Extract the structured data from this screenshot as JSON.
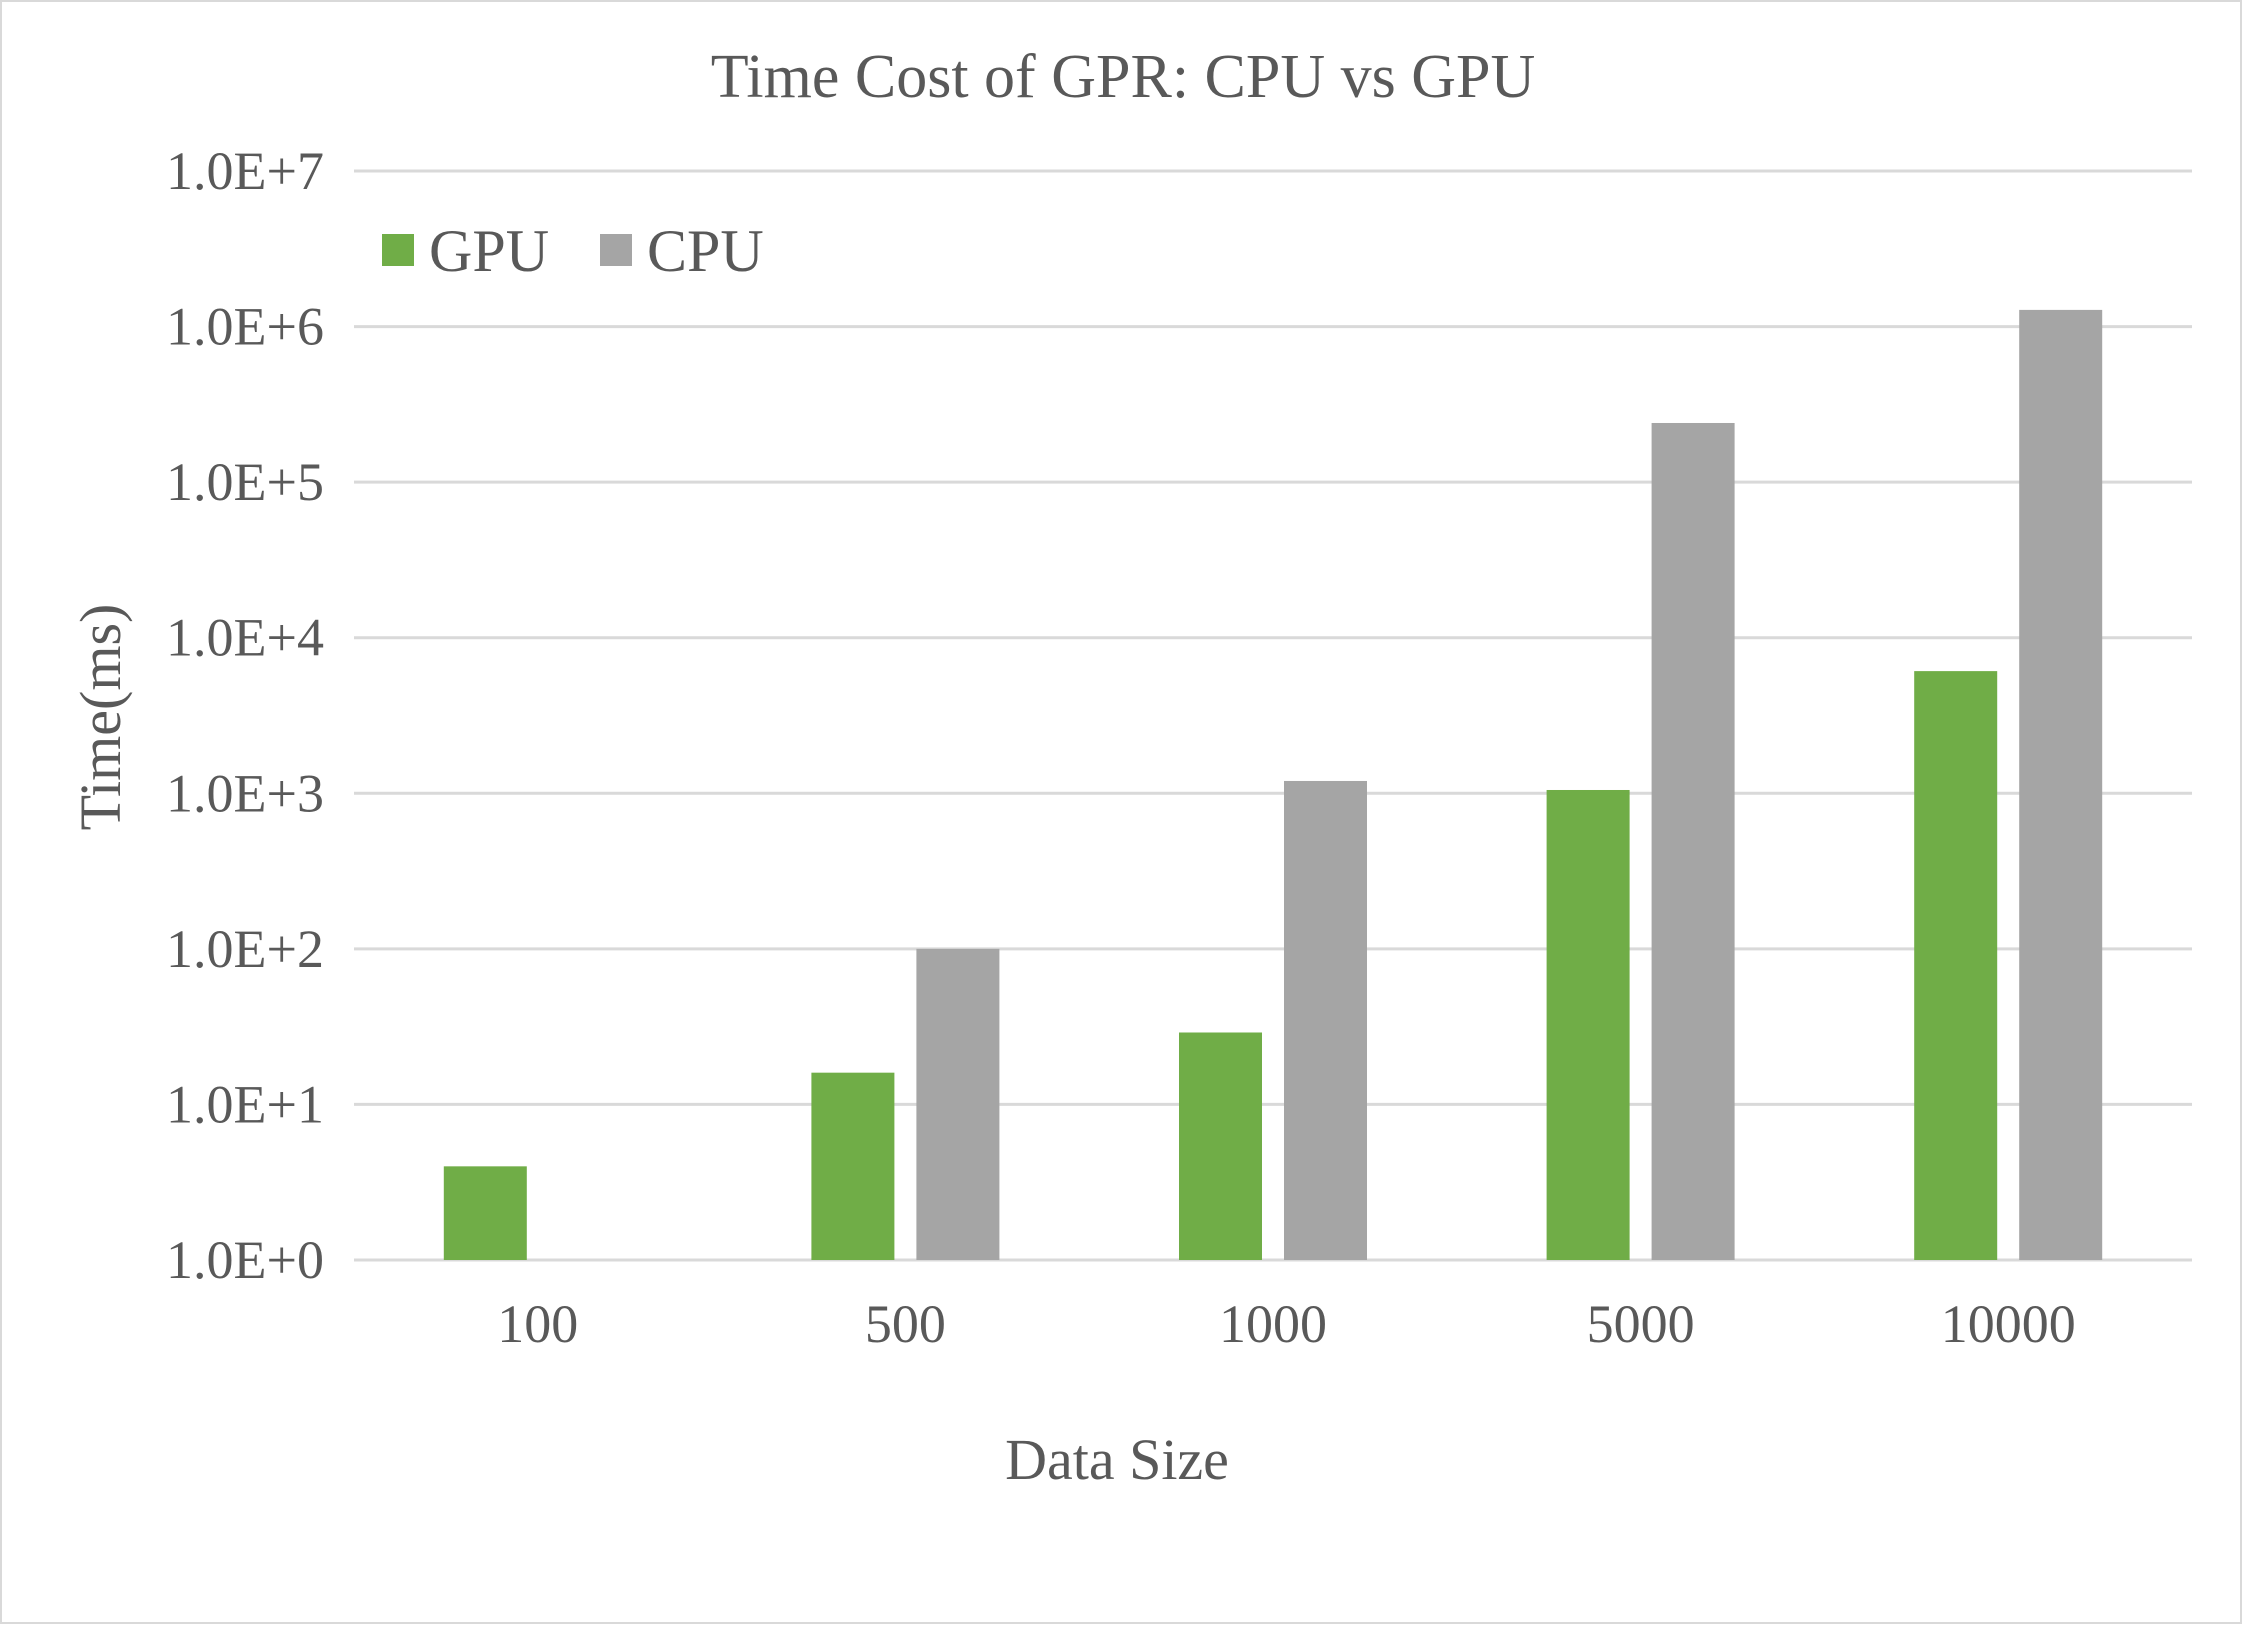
{
  "chart_data": {
    "type": "bar",
    "title": "Time Cost of GPR: CPU vs GPU",
    "xlabel": "Data Size",
    "ylabel": "Time(ms)",
    "yscale": "log",
    "ylim": [
      1,
      10000000
    ],
    "yticks": [
      1,
      10,
      100,
      1000,
      10000,
      100000,
      1000000,
      10000000
    ],
    "ytick_labels": [
      "1.0E+0",
      "1.0E+1",
      "1.0E+2",
      "1.0E+3",
      "1.0E+4",
      "1.0E+5",
      "1.0E+6",
      "1.0E+7"
    ],
    "categories": [
      "100",
      "500",
      "1000",
      "5000",
      "10000"
    ],
    "series": [
      {
        "name": "GPU",
        "color": "#70ad47",
        "values": [
          4,
          16,
          29,
          1050,
          6100
        ]
      },
      {
        "name": "CPU",
        "color": "#a5a5a5",
        "values": [
          1,
          100,
          1200,
          240000,
          1280000
        ]
      }
    ],
    "grid": true,
    "legend": "top-left"
  }
}
